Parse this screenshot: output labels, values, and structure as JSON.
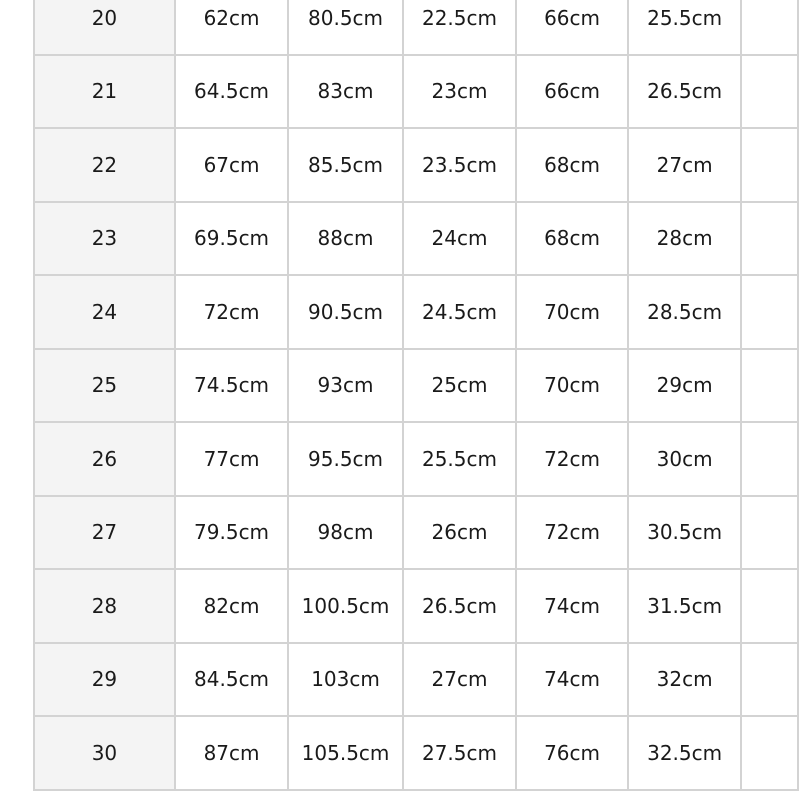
{
  "table": {
    "rows": [
      {
        "size": "20",
        "values": [
          "62cm",
          "80.5cm",
          "22.5cm",
          "66cm",
          "25.5cm"
        ]
      },
      {
        "size": "21",
        "values": [
          "64.5cm",
          "83cm",
          "23cm",
          "66cm",
          "26.5cm"
        ]
      },
      {
        "size": "22",
        "values": [
          "67cm",
          "85.5cm",
          "23.5cm",
          "68cm",
          "27cm"
        ]
      },
      {
        "size": "23",
        "values": [
          "69.5cm",
          "88cm",
          "24cm",
          "68cm",
          "28cm"
        ]
      },
      {
        "size": "24",
        "values": [
          "72cm",
          "90.5cm",
          "24.5cm",
          "70cm",
          "28.5cm"
        ]
      },
      {
        "size": "25",
        "values": [
          "74.5cm",
          "93cm",
          "25cm",
          "70cm",
          "29cm"
        ]
      },
      {
        "size": "26",
        "values": [
          "77cm",
          "95.5cm",
          "25.5cm",
          "72cm",
          "30cm"
        ]
      },
      {
        "size": "27",
        "values": [
          "79.5cm",
          "98cm",
          "26cm",
          "72cm",
          "30.5cm"
        ]
      },
      {
        "size": "28",
        "values": [
          "82cm",
          "100.5cm",
          "26.5cm",
          "74cm",
          "31.5cm"
        ]
      },
      {
        "size": "29",
        "values": [
          "84.5cm",
          "103cm",
          "27cm",
          "74cm",
          "32cm"
        ]
      },
      {
        "size": "30",
        "values": [
          "87cm",
          "105.5cm",
          "27.5cm",
          "76cm",
          "32.5cm"
        ]
      }
    ]
  }
}
